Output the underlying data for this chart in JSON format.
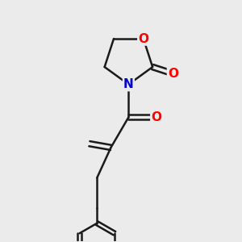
{
  "background_color": "#ebebeb",
  "bond_color": "#1a1a1a",
  "bond_width": 1.8,
  "atom_colors": {
    "O": "#ff0000",
    "N": "#0000cc"
  },
  "font_size_atom": 11
}
